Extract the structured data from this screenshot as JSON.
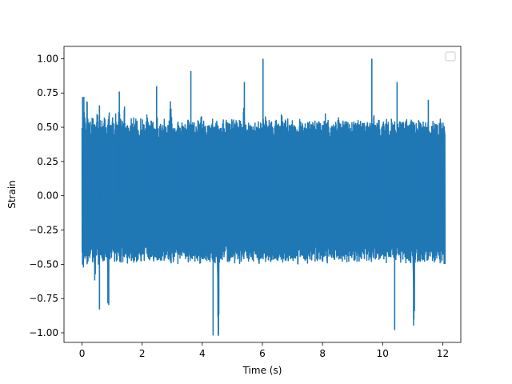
{
  "chart_data": {
    "type": "line",
    "title": "",
    "xlabel": "Time (s)",
    "ylabel": "Strain",
    "xlim": [
      -0.6,
      12.6
    ],
    "ylim": [
      -1.07,
      1.09
    ],
    "x_ticks": [
      0,
      2,
      4,
      6,
      8,
      10,
      12
    ],
    "y_ticks": [
      -1.0,
      -0.75,
      -0.5,
      -0.25,
      0.0,
      0.25,
      0.5,
      0.75,
      1.0
    ],
    "x_tick_labels": [
      "0",
      "2",
      "4",
      "6",
      "8",
      "10",
      "12"
    ],
    "y_tick_labels": [
      "−1.00",
      "−0.75",
      "−0.50",
      "−0.25",
      "0.00",
      "0.25",
      "0.50",
      "0.75",
      "1.00"
    ],
    "grid": false,
    "legend": {
      "placement": "top-right",
      "entries": []
    },
    "series": [
      {
        "color": "#1f77b4",
        "x_range": [
          0,
          12.04
        ],
        "envelope_step": 0.04,
        "upper": [
          0.55,
          0.72,
          0.58,
          0.52,
          0.71,
          0.55,
          0.58,
          0.5,
          0.6,
          0.57,
          0.55,
          0.52,
          0.62,
          0.55,
          0.58,
          0.51,
          0.56,
          0.53,
          0.58,
          0.55,
          0.5,
          0.57,
          0.62,
          0.54,
          0.56,
          0.57,
          0.54,
          0.6,
          0.55,
          0.56,
          0.63,
          0.57,
          0.52,
          0.55,
          0.66,
          0.55,
          0.57,
          0.52,
          0.5,
          0.55,
          0.58,
          0.54,
          0.57,
          0.53,
          0.56,
          0.55,
          0.5,
          0.53,
          0.58,
          0.56,
          0.57,
          0.52,
          0.55,
          0.59,
          0.54,
          0.52,
          0.56,
          0.54,
          0.55,
          0.53,
          0.57,
          0.58,
          0.53,
          0.52,
          0.56,
          0.5,
          0.55,
          0.57,
          0.56,
          0.54,
          0.55,
          0.58,
          0.76,
          0.58,
          0.52,
          0.53,
          0.55,
          0.56,
          0.57,
          0.53,
          0.52,
          0.58,
          0.54,
          0.55,
          0.56,
          0.53,
          0.57,
          0.55,
          0.53,
          0.55,
          0.54,
          0.56,
          0.56,
          0.54,
          0.56,
          0.57,
          0.55,
          0.61,
          0.53,
          0.56,
          0.57,
          0.55,
          0.53,
          0.54,
          0.55,
          0.55,
          0.56,
          0.53,
          0.54,
          0.57,
          0.55,
          0.56,
          0.56,
          0.52,
          0.54,
          0.56,
          0.53,
          0.55,
          0.57,
          0.56,
          0.55,
          0.53,
          0.56,
          0.54,
          0.58,
          0.53,
          0.55,
          0.54,
          0.56,
          0.55,
          0.53,
          0.54,
          0.65,
          0.53,
          0.55,
          0.56,
          0.53,
          0.54,
          0.56,
          0.55,
          0.54,
          0.56,
          0.54,
          0.53,
          0.56,
          0.52,
          0.55,
          0.53,
          0.56,
          0.54,
          0.58,
          0.55,
          0.53,
          0.56,
          0.54,
          0.55,
          0.53,
          0.54,
          0.56,
          0.55,
          0.53,
          0.54,
          0.56,
          0.63,
          0.55,
          0.53,
          0.56,
          0.55,
          0.57,
          0.54,
          0.53,
          0.56,
          0.55,
          0.54,
          0.56,
          0.55,
          0.53,
          0.54,
          0.56,
          0.55,
          0.57,
          0.54,
          0.55,
          0.53,
          0.56,
          0.54,
          0.55,
          0.53,
          0.56,
          0.54,
          0.55,
          0.57,
          0.53,
          0.56,
          0.55,
          0.54,
          0.55,
          0.54,
          0.56,
          0.62,
          0.54,
          0.55,
          0.53,
          0.56,
          0.54,
          0.55,
          0.53,
          0.56,
          0.54,
          0.57,
          0.55,
          0.53,
          0.54,
          0.56,
          0.55,
          0.54,
          0.56,
          0.55,
          0.54,
          0.53,
          0.55,
          0.54,
          0.56,
          0.55,
          0.54,
          0.56,
          0.53,
          0.55,
          0.54,
          0.56,
          0.55,
          0.53,
          0.54,
          0.56,
          0.54,
          0.55,
          0.53,
          0.56,
          0.6,
          0.55,
          0.53,
          0.54,
          0.56,
          0.55,
          0.54,
          0.53,
          0.56,
          0.55,
          0.54,
          0.56,
          0.55,
          0.53,
          0.54,
          0.56,
          0.55,
          0.54,
          0.53,
          0.55,
          0.56,
          0.54,
          0.55,
          0.53,
          0.56,
          0.54,
          0.55,
          0.56,
          0.54,
          0.53,
          0.55,
          0.56,
          0.54,
          0.55,
          0.53,
          0.56,
          0.54,
          0.55,
          0.53,
          0.56,
          0.54,
          0.55,
          0.53,
          0.54,
          0.56,
          0.55,
          0.53,
          0.54,
          0.56,
          0.55,
          0.54,
          0.53,
          0.56,
          0.55,
          0.54,
          0.56,
          0.53,
          0.55,
          0.54
        ],
        "lower": [
          -0.5,
          -0.52,
          -0.48,
          -0.45,
          -0.52,
          -0.49,
          -0.47,
          -0.44,
          -0.5,
          -0.48,
          -0.65,
          -0.47,
          -0.45,
          -0.5,
          -0.49,
          -0.44,
          -0.47,
          -0.52,
          -0.48,
          -0.46,
          -0.45,
          -0.83,
          -0.49,
          -0.46,
          -0.5,
          -0.47,
          -0.48,
          -0.45,
          -0.5,
          -0.46,
          -0.48,
          -0.49,
          -0.45,
          -0.5,
          -0.47,
          -0.48,
          -0.45,
          -0.5,
          -0.48,
          -0.46,
          -0.48,
          -0.47,
          -0.49,
          -0.46,
          -0.48,
          -0.5,
          -0.47,
          -0.45,
          -0.48,
          -0.46,
          -0.49,
          -0.47,
          -0.48,
          -0.45,
          -0.5,
          -0.47,
          -0.48,
          -0.46,
          -0.49,
          -0.45,
          -0.48,
          -0.47,
          -0.5,
          -0.46,
          -0.48,
          -0.47,
          -0.45,
          -0.49,
          -0.48,
          -0.46,
          -0.47,
          -0.48,
          -0.5,
          -0.46,
          -0.49,
          -0.47,
          -0.48,
          -0.45,
          -0.5,
          -0.47,
          -0.48,
          -0.46,
          -0.49,
          -0.47,
          -0.48,
          -0.45,
          -0.5,
          -0.46,
          -0.48,
          -0.47,
          -0.48,
          -0.46,
          -0.49,
          -0.47,
          -0.48,
          -0.45,
          -0.5,
          -0.46,
          -0.48,
          -0.47,
          -0.49,
          -0.46,
          -0.48,
          -0.47,
          -0.5,
          -0.45,
          -0.48,
          -0.47,
          -0.49,
          -0.46,
          -0.48,
          -1.02,
          -0.5,
          -0.47,
          -0.48,
          -0.46,
          -0.49,
          -0.45,
          -0.48,
          -0.47,
          -0.5,
          -0.46,
          -0.48,
          -0.47,
          -0.49,
          -0.46,
          -0.48,
          -0.47,
          -0.5,
          -0.45,
          -0.48,
          -0.47,
          -0.49,
          -0.46,
          -0.48,
          -0.47,
          -0.5,
          -0.46,
          -0.48,
          -0.47,
          -0.49,
          -0.45,
          -0.48,
          -0.47,
          -0.5,
          -0.46,
          -0.48,
          -0.47,
          -0.49,
          -0.46,
          -0.48,
          -0.47,
          -0.5,
          -0.45,
          -0.48,
          -0.47,
          -0.49,
          -0.46,
          -0.48,
          -0.47,
          -0.5,
          -0.46,
          -0.48,
          -0.47,
          -0.49,
          -0.45,
          -0.48,
          -0.47,
          -0.5,
          -0.46,
          -0.48,
          -0.47,
          -0.49,
          -0.46,
          -0.48,
          -0.47,
          -0.5,
          -0.45,
          -0.48,
          -0.47,
          -0.49,
          -0.46,
          -0.48,
          -0.47,
          -0.5,
          -0.46,
          -0.48,
          -0.47,
          -0.49,
          -0.45,
          -0.48,
          -0.47,
          -0.5,
          -0.46,
          -0.48,
          -0.47,
          -0.49,
          -0.46,
          -0.48,
          -0.47,
          -0.5,
          -0.45,
          -0.48,
          -0.47,
          -0.49,
          -0.46,
          -0.48,
          -0.47,
          -0.5,
          -0.46,
          -0.48,
          -0.47,
          -0.49,
          -0.45,
          -0.48,
          -0.47,
          -0.5,
          -0.46,
          -0.48,
          -0.47,
          -0.49,
          -0.46,
          -0.48,
          -0.47,
          -0.5,
          -0.45,
          -0.48,
          -0.47,
          -0.49,
          -0.46,
          -0.48,
          -0.47,
          -0.5,
          -0.46,
          -0.48,
          -0.47,
          -0.49,
          -0.45,
          -0.48,
          -0.47,
          -0.5,
          -0.46,
          -0.48,
          -0.47,
          -0.49,
          -0.46,
          -0.48,
          -0.47,
          -0.5,
          -0.45,
          -0.48,
          -0.47,
          -0.49,
          -0.46,
          -0.48,
          -0.47,
          -0.5,
          -0.46,
          -0.48,
          -0.47,
          -0.49,
          -0.45,
          -0.48,
          -0.47,
          -0.5,
          -0.46,
          -0.48,
          -0.47,
          -0.49,
          -0.46,
          -0.48,
          -0.98,
          -0.5,
          -0.45,
          -0.48,
          -0.47,
          -0.49,
          -0.46,
          -0.48,
          -0.47,
          -0.5,
          -0.46,
          -0.48,
          -0.47,
          -0.49,
          -0.45,
          -0.48,
          -0.47,
          -0.5,
          -0.46,
          -0.48,
          -0.47,
          -0.49,
          -0.46,
          -0.48,
          -0.47,
          -0.5
        ]
      }
    ],
    "peaks": [
      {
        "x": 0.02,
        "y": 0.72
      },
      {
        "x": 0.58,
        "y": -0.83
      },
      {
        "x": 0.58,
        "y": 0.66
      },
      {
        "x": 2.48,
        "y": 0.8
      },
      {
        "x": 3.62,
        "y": 0.91
      },
      {
        "x": 4.36,
        "y": -1.02
      },
      {
        "x": 6.02,
        "y": 1.0
      },
      {
        "x": 9.64,
        "y": 1.0
      },
      {
        "x": 10.4,
        "y": -0.98
      },
      {
        "x": 10.48,
        "y": 0.83
      },
      {
        "x": 5.4,
        "y": 0.83
      },
      {
        "x": 1.24,
        "y": 0.76
      },
      {
        "x": 11.52,
        "y": 0.7
      }
    ]
  }
}
